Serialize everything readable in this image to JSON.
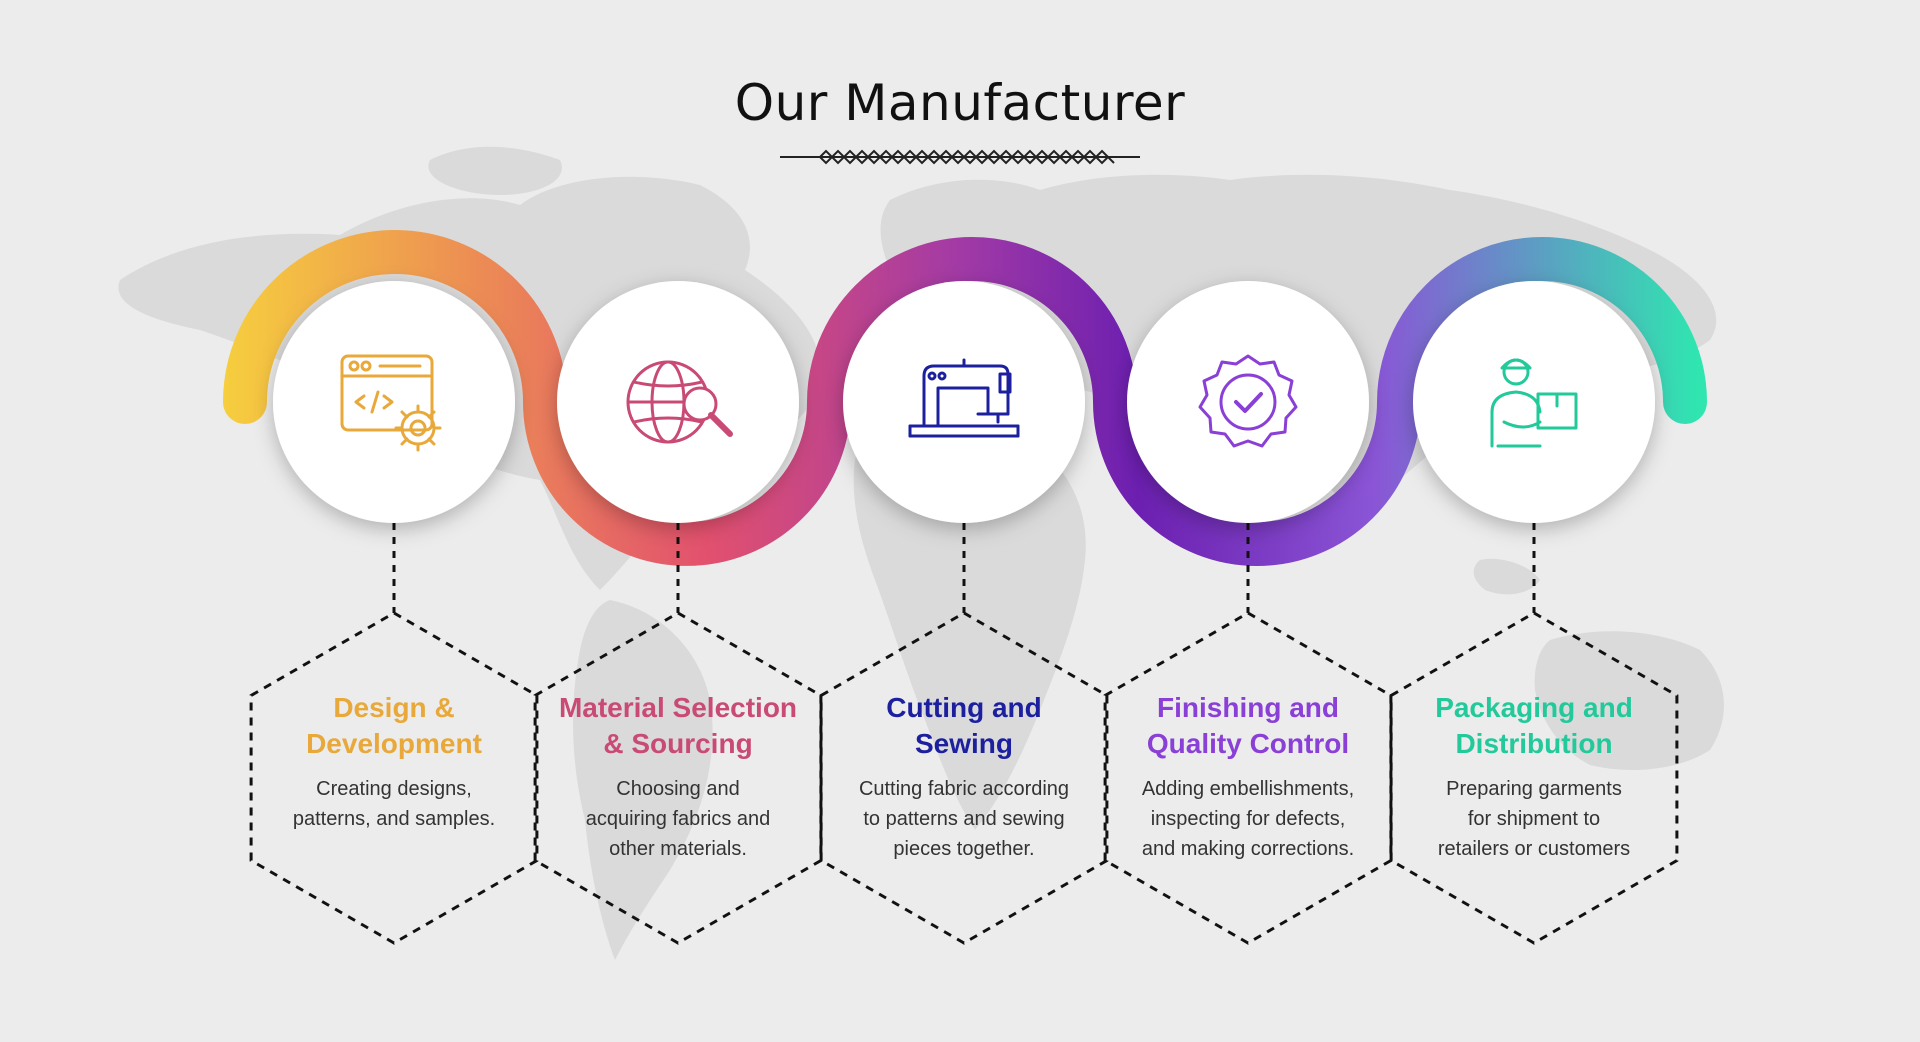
{
  "page": {
    "title": "Our Manufacturer"
  },
  "colors": {
    "background": "#ececec",
    "map": "#d9d9d9",
    "dash": "#111111"
  },
  "steps": [
    {
      "title_line1": "Design &",
      "title_line2": "Development",
      "desc_line1": "Creating designs,",
      "desc_line2": "patterns, and samples.",
      "desc_line3": "",
      "color": "#e8a83a",
      "icon": "web-code-gear-icon"
    },
    {
      "title_line1": "Material Selection",
      "title_line2": "& Sourcing",
      "desc_line1": "Choosing and",
      "desc_line2": "acquiring fabrics and",
      "desc_line3": "other materials.",
      "color": "#c84a75",
      "icon": "globe-search-icon"
    },
    {
      "title_line1": "Cutting and",
      "title_line2": "Sewing",
      "desc_line1": "Cutting fabric according",
      "desc_line2": "to patterns and sewing",
      "desc_line3": "pieces together.",
      "color": "#1c1f9e",
      "icon": "sewing-machine-icon"
    },
    {
      "title_line1": "Finishing and",
      "title_line2": "Quality Control",
      "desc_line1": "Adding embellishments,",
      "desc_line2": "inspecting for defects,",
      "desc_line3": "and making corrections.",
      "color": "#8a3fd6",
      "icon": "quality-badge-icon"
    },
    {
      "title_line1": "Packaging and",
      "title_line2": "Distribution",
      "desc_line1": "Preparing garments",
      "desc_line2": "for shipment to",
      "desc_line3": "retailers or customers",
      "color": "#22c99a",
      "icon": "delivery-person-icon"
    }
  ]
}
